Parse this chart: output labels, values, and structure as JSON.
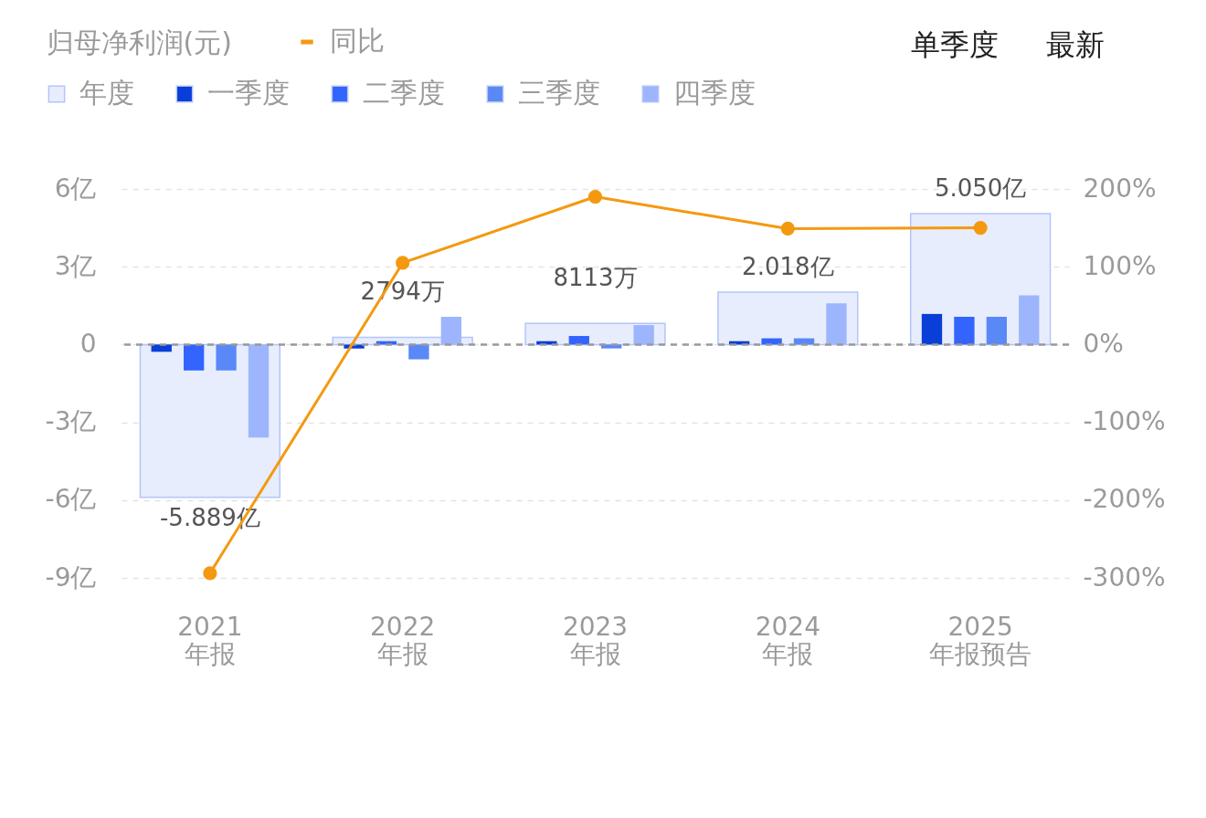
{
  "chart_data": {
    "type": "bar",
    "ylabel": "归母净利润(元)",
    "categories": [
      "2021\n年报",
      "2022\n年报",
      "2023\n年报",
      "2024\n年报",
      "2025\n年报预告"
    ],
    "series": [
      {
        "name": "年度",
        "color": "#e7edfd",
        "values": [
          -5.889,
          0.2794,
          0.8113,
          2.018,
          5.05
        ],
        "value_labels": [
          "-5.889亿",
          null,
          null,
          "2.018亿",
          "5.050亿"
        ]
      },
      {
        "name": "一季度",
        "color": "#0a3ed9",
        "values": [
          -0.28,
          -0.15,
          0.13,
          0.13,
          1.18
        ]
      },
      {
        "name": "二季度",
        "color": "#3464fe",
        "values": [
          -1.0,
          0.13,
          0.33,
          0.24,
          1.07
        ]
      },
      {
        "name": "三季度",
        "color": "#5b88f7",
        "values": [
          -1.0,
          -0.57,
          -0.15,
          0.24,
          1.07
        ]
      },
      {
        "name": "四季度",
        "color": "#9db5fc",
        "values": [
          -3.59,
          1.07,
          0.75,
          1.59,
          1.9
        ]
      },
      {
        "name": "同比",
        "type": "line",
        "axis": "y2",
        "color": "#f4990f",
        "values": [
          -294,
          105,
          190,
          149,
          150
        ]
      }
    ],
    "ylim": [
      -9,
      6
    ],
    "yticks": [
      {
        "value": -9,
        "label": "-9亿"
      },
      {
        "value": -6,
        "label": "-6亿"
      },
      {
        "value": -3,
        "label": "-3亿"
      },
      0,
      {
        "value": 3,
        "label": "3亿"
      },
      {
        "value": 6,
        "label": "6亿"
      }
    ],
    "y2lim": [
      -300,
      200
    ],
    "y2ticks": [
      {
        "value": -300,
        "label": "-300%"
      },
      {
        "value": -200,
        "label": "-200%"
      },
      {
        "value": -100,
        "label": "-100%"
      },
      {
        "value": 0,
        "label": "0%"
      },
      {
        "value": 100,
        "label": "100%"
      },
      {
        "value": 200,
        "label": "200%"
      }
    ],
    "grid": "y",
    "legend": "top left",
    "marker": "circle",
    "line_style": "solid",
    "ref_lines": [
      {
        "axis": "y",
        "value": 0,
        "color": "#999999",
        "line_style": "dashed"
      }
    ],
    "annotations": [
      "单季度",
      "最新",
      {
        "text": "2794万",
        "x": "2022\n年报",
        "y": 0.2794
      },
      {
        "text": "8113万",
        "x": "2023\n年报",
        "y": 0.8113
      }
    ]
  }
}
